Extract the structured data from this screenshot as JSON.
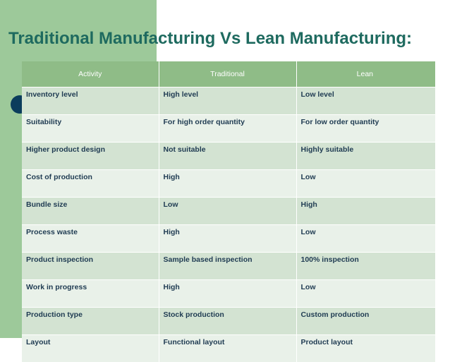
{
  "title": "Traditional Manufacturing Vs Lean Manufacturing:",
  "table": {
    "headers": [
      "Activity",
      "Traditional",
      "Lean"
    ],
    "rows": [
      [
        "Inventory level",
        "High level",
        "Low level"
      ],
      [
        "Suitability",
        "For high order quantity",
        "For low order quantity"
      ],
      [
        "Higher product design",
        "Not suitable",
        "Highly suitable"
      ],
      [
        "Cost of production",
        "High",
        "Low"
      ],
      [
        "Bundle size",
        "Low",
        "High"
      ],
      [
        "Process waste",
        "High",
        "Low"
      ],
      [
        "Product inspection",
        "Sample based inspection",
        "100% inspection"
      ],
      [
        "Work in progress",
        "High",
        "Low"
      ],
      [
        "Production type",
        "Stock production",
        "Custom production"
      ],
      [
        "Layout",
        "Functional layout",
        "Product layout"
      ]
    ]
  },
  "colors": {
    "accent_band": "#9dc99a",
    "header_fill": "#8fbc87",
    "row_odd": "#d3e3d2",
    "row_even": "#e9f1e9",
    "title_text": "#1e6a5f",
    "bullet": "#0b3d5c"
  }
}
